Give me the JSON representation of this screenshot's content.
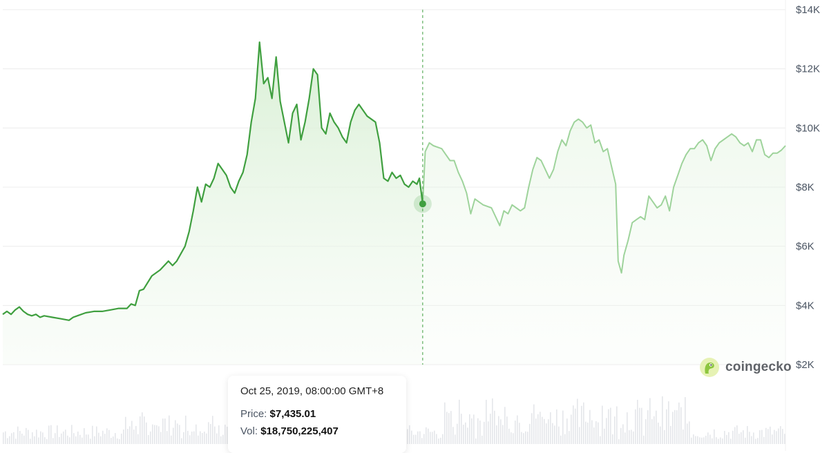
{
  "chart_data": {
    "type": "area",
    "title": "",
    "ylabel": "",
    "xlabel": "",
    "ylim": [
      2000,
      14000
    ],
    "y_ticks": [
      {
        "value": 14000,
        "label": "$14K"
      },
      {
        "value": 12000,
        "label": "$12K"
      },
      {
        "value": 10000,
        "label": "$10K"
      },
      {
        "value": 8000,
        "label": "$8K"
      },
      {
        "value": 6000,
        "label": "$6K"
      },
      {
        "value": 4000,
        "label": "$4K"
      },
      {
        "value": 2000,
        "label": "$2K"
      }
    ],
    "grid": true,
    "x_range": [
      0,
      100
    ],
    "hover_index": 50.7,
    "series": [
      {
        "points": [
          [
            0,
            3700
          ],
          [
            0.5,
            3800
          ],
          [
            1,
            3700
          ],
          [
            1.5,
            3850
          ],
          [
            2,
            3950
          ],
          [
            2.5,
            3800
          ],
          [
            3,
            3700
          ],
          [
            3.5,
            3650
          ],
          [
            4,
            3700
          ],
          [
            4.5,
            3600
          ],
          [
            5,
            3650
          ],
          [
            6,
            3600
          ],
          [
            7,
            3550
          ],
          [
            8,
            3500
          ],
          [
            8.5,
            3600
          ],
          [
            9,
            3650
          ],
          [
            10,
            3750
          ],
          [
            11,
            3800
          ],
          [
            12,
            3800
          ],
          [
            13,
            3850
          ],
          [
            14,
            3900
          ],
          [
            15,
            3900
          ],
          [
            15.5,
            4050
          ],
          [
            16,
            4000
          ],
          [
            16.5,
            4500
          ],
          [
            17,
            4550
          ],
          [
            18,
            5000
          ],
          [
            19,
            5200
          ],
          [
            20,
            5500
          ],
          [
            20.5,
            5350
          ],
          [
            21,
            5500
          ],
          [
            22,
            6000
          ],
          [
            22.5,
            6500
          ],
          [
            23,
            7200
          ],
          [
            23.5,
            8000
          ],
          [
            24,
            7500
          ],
          [
            24.5,
            8100
          ],
          [
            25,
            8000
          ],
          [
            25.5,
            8300
          ],
          [
            26,
            8800
          ],
          [
            26.5,
            8600
          ],
          [
            27,
            8400
          ],
          [
            27.5,
            8000
          ],
          [
            28,
            7800
          ],
          [
            28.5,
            8200
          ],
          [
            29,
            8500
          ],
          [
            29.5,
            9100
          ],
          [
            30,
            10200
          ],
          [
            30.5,
            11000
          ],
          [
            31,
            12900
          ],
          [
            31.5,
            11500
          ],
          [
            32,
            11700
          ],
          [
            32.5,
            11000
          ],
          [
            33,
            12400
          ],
          [
            33.5,
            10900
          ],
          [
            34,
            10200
          ],
          [
            34.5,
            9500
          ],
          [
            35,
            10500
          ],
          [
            35.5,
            10800
          ],
          [
            36,
            9600
          ],
          [
            36.5,
            10200
          ],
          [
            37,
            11000
          ],
          [
            37.5,
            12000
          ],
          [
            38,
            11800
          ],
          [
            38.5,
            10000
          ],
          [
            39,
            9800
          ],
          [
            39.5,
            10500
          ],
          [
            40,
            10200
          ],
          [
            40.5,
            10000
          ],
          [
            41,
            9700
          ],
          [
            41.5,
            9500
          ],
          [
            42,
            10200
          ],
          [
            42.5,
            10600
          ],
          [
            43,
            10800
          ],
          [
            44,
            10400
          ],
          [
            45,
            10200
          ],
          [
            45.5,
            9500
          ],
          [
            46,
            8300
          ],
          [
            46.5,
            8200
          ],
          [
            47,
            8500
          ],
          [
            47.5,
            8300
          ],
          [
            48,
            8400
          ],
          [
            48.5,
            8100
          ],
          [
            49,
            8000
          ],
          [
            49.5,
            8200
          ],
          [
            50,
            8100
          ],
          [
            50.3,
            8300
          ],
          [
            50.7,
            7435
          ],
          [
            51,
            9200
          ],
          [
            51.5,
            9500
          ],
          [
            52,
            9400
          ],
          [
            53,
            9300
          ],
          [
            53.5,
            9100
          ],
          [
            54,
            8900
          ],
          [
            54.5,
            8900
          ],
          [
            55,
            8500
          ],
          [
            55.5,
            8200
          ],
          [
            56,
            7800
          ],
          [
            56.5,
            7100
          ],
          [
            57,
            7600
          ],
          [
            57.5,
            7500
          ],
          [
            58,
            7400
          ],
          [
            59,
            7300
          ],
          [
            60,
            6700
          ],
          [
            60.5,
            7200
          ],
          [
            61,
            7100
          ],
          [
            61.5,
            7400
          ],
          [
            62,
            7300
          ],
          [
            62.5,
            7200
          ],
          [
            63,
            7300
          ],
          [
            63.5,
            8000
          ],
          [
            64,
            8600
          ],
          [
            64.5,
            9000
          ],
          [
            65,
            8900
          ],
          [
            65.5,
            8600
          ],
          [
            66,
            8300
          ],
          [
            66.5,
            8600
          ],
          [
            67,
            9200
          ],
          [
            67.5,
            9600
          ],
          [
            68,
            9400
          ],
          [
            68.5,
            9900
          ],
          [
            69,
            10200
          ],
          [
            69.5,
            10300
          ],
          [
            70,
            10200
          ],
          [
            70.5,
            10000
          ],
          [
            71,
            10100
          ],
          [
            71.5,
            9500
          ],
          [
            72,
            9600
          ],
          [
            72.5,
            9200
          ],
          [
            73,
            9300
          ],
          [
            73.5,
            8700
          ],
          [
            74,
            8100
          ],
          [
            74.3,
            5500
          ],
          [
            74.7,
            5100
          ],
          [
            75,
            5700
          ],
          [
            75.5,
            6200
          ],
          [
            76,
            6800
          ],
          [
            76.5,
            6900
          ],
          [
            77,
            7000
          ],
          [
            77.5,
            6900
          ],
          [
            78,
            7700
          ],
          [
            78.5,
            7500
          ],
          [
            79,
            7300
          ],
          [
            79.5,
            7400
          ],
          [
            80,
            7700
          ],
          [
            80.5,
            7200
          ],
          [
            81,
            8000
          ],
          [
            81.5,
            8400
          ],
          [
            82,
            8800
          ],
          [
            82.5,
            9100
          ],
          [
            83,
            9300
          ],
          [
            83.5,
            9300
          ],
          [
            84,
            9500
          ],
          [
            84.5,
            9600
          ],
          [
            85,
            9400
          ],
          [
            85.5,
            8900
          ],
          [
            86,
            9300
          ],
          [
            86.5,
            9500
          ],
          [
            87,
            9600
          ],
          [
            87.5,
            9700
          ],
          [
            88,
            9800
          ],
          [
            88.5,
            9700
          ],
          [
            89,
            9500
          ],
          [
            89.5,
            9400
          ],
          [
            90,
            9500
          ],
          [
            90.5,
            9200
          ],
          [
            91,
            9600
          ],
          [
            91.5,
            9600
          ],
          [
            92,
            9100
          ],
          [
            92.5,
            9000
          ],
          [
            93,
            9150
          ],
          [
            93.5,
            9150
          ],
          [
            94,
            9250
          ],
          [
            94.5,
            9400
          ]
        ]
      }
    ],
    "volume_note": "",
    "colors": {
      "line": "#3f9f3f",
      "line_faded": "#9ed39b",
      "fill": "#e8f5e5",
      "grid": "#ececec"
    }
  },
  "tooltip": {
    "date": "Oct 25, 2019, 08:00:00 GMT+8",
    "price_label": "Price:",
    "price_value": "$7,435.01",
    "vol_label": "Vol:",
    "vol_value": "$18,750,225,407"
  },
  "watermark": {
    "text": "coingecko",
    "icon": "gecko-logo-icon"
  }
}
